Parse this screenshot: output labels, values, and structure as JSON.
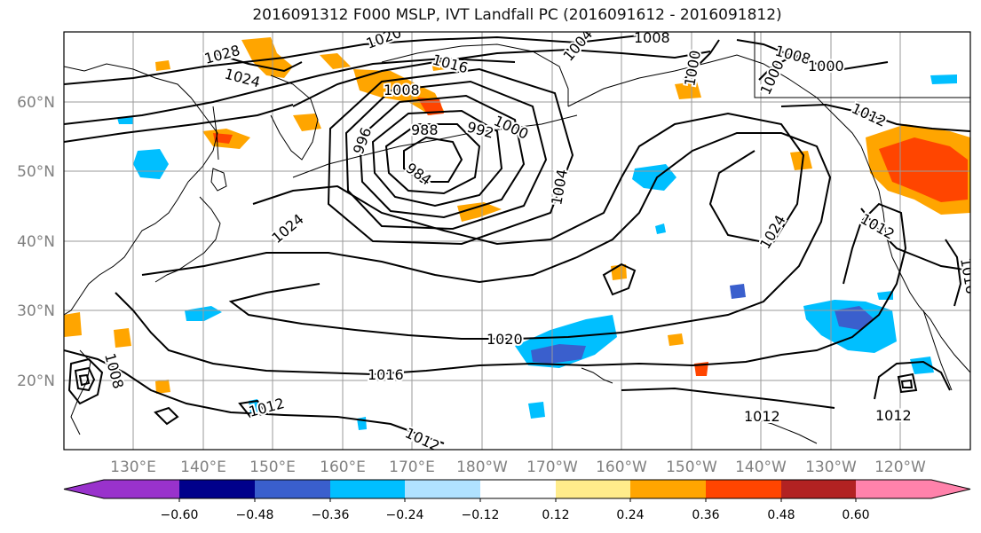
{
  "title": "2016091312 F000 MSLP, IVT Landfall PC (2016091612 - 2016091812)",
  "lat_labels": [
    "60°N",
    "50°N",
    "40°N",
    "30°N",
    "20°N"
  ],
  "lon_labels": [
    "130°E",
    "140°E",
    "150°E",
    "160°E",
    "170°E",
    "180°W",
    "170°W",
    "160°W",
    "150°W",
    "140°W",
    "130°W",
    "120°W"
  ],
  "contour_labels": [
    "1028",
    "1024",
    "1020",
    "1016",
    "1008",
    "1004",
    "1008",
    "1008",
    "1000",
    "1000",
    "1000",
    "1012",
    "996",
    "988",
    "992",
    "1000",
    "984",
    "1004",
    "1024",
    "1024",
    "1012",
    "1016",
    "1020",
    "1016",
    "1008",
    "1012",
    "1012",
    "1012",
    "1012"
  ],
  "low_center_value": "984",
  "colorbar": {
    "ticks": [
      "−0.60",
      "−0.48",
      "−0.36",
      "−0.24",
      "−0.12",
      "0.12",
      "0.24",
      "0.36",
      "0.48",
      "0.60"
    ],
    "colors": [
      "#9932cc",
      "#00008b",
      "#3a5fcd",
      "#00bfff",
      "#b0e2ff",
      "#ffffff",
      "#ffec8b",
      "#ffa500",
      "#ff4500",
      "#b22222",
      "#ff82ab"
    ]
  }
}
